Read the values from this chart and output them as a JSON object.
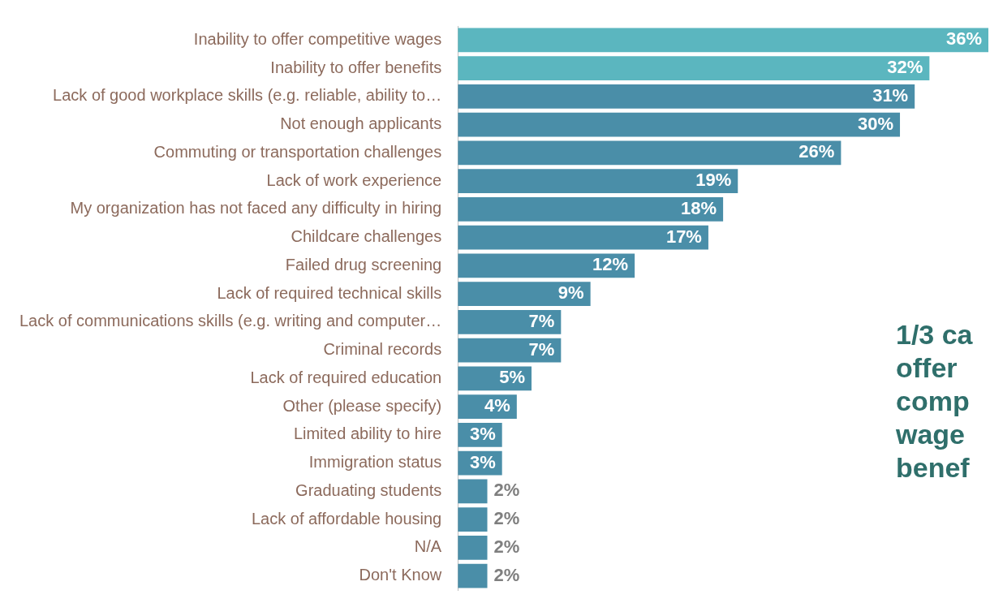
{
  "chart_data": {
    "type": "bar",
    "orientation": "horizontal",
    "categories": [
      "Inability to offer competitive wages",
      "Inability to offer benefits",
      "Lack of good workplace skills (e.g. reliable, ability to…",
      "Not enough applicants",
      "Commuting or transportation challenges",
      "Lack of work experience",
      "My organization has not faced any difficulty in hiring",
      "Childcare challenges",
      "Failed drug screening",
      "Lack of required technical skills",
      "Lack of communications skills (e.g. writing and computer…",
      "Criminal records",
      "Lack of required education",
      "Other (please specify)",
      "Limited ability to hire",
      "Immigration status",
      "Graduating students",
      "Lack of affordable housing",
      "N/A",
      "Don't Know"
    ],
    "values": [
      36,
      32,
      31,
      30,
      26,
      19,
      18,
      17,
      12,
      9,
      7,
      7,
      5,
      4,
      3,
      3,
      2,
      2,
      2,
      2
    ],
    "value_labels": [
      "36%",
      "32%",
      "31%",
      "30%",
      "26%",
      "19%",
      "18%",
      "17%",
      "12%",
      "9%",
      "7%",
      "7%",
      "5%",
      "4%",
      "3%",
      "3%",
      "2%",
      "2%",
      "2%",
      "2%"
    ],
    "colors": [
      "#5bb6bf",
      "#5bb6bf",
      "#4a8ea8",
      "#4a8ea8",
      "#4a8ea8",
      "#4a8ea8",
      "#4a8ea8",
      "#4a8ea8",
      "#4a8ea8",
      "#4a8ea8",
      "#4a8ea8",
      "#4a8ea8",
      "#4a8ea8",
      "#4a8ea8",
      "#4a8ea8",
      "#4a8ea8",
      "#4a8ea8",
      "#4a8ea8",
      "#4a8ea8",
      "#4a8ea8"
    ],
    "xlim": [
      0,
      36
    ],
    "tick_labels": "y",
    "grid": false,
    "legend": false,
    "annotations": [
      "1/3 ca\noffer\ncomp\nwage\nbenef"
    ]
  }
}
